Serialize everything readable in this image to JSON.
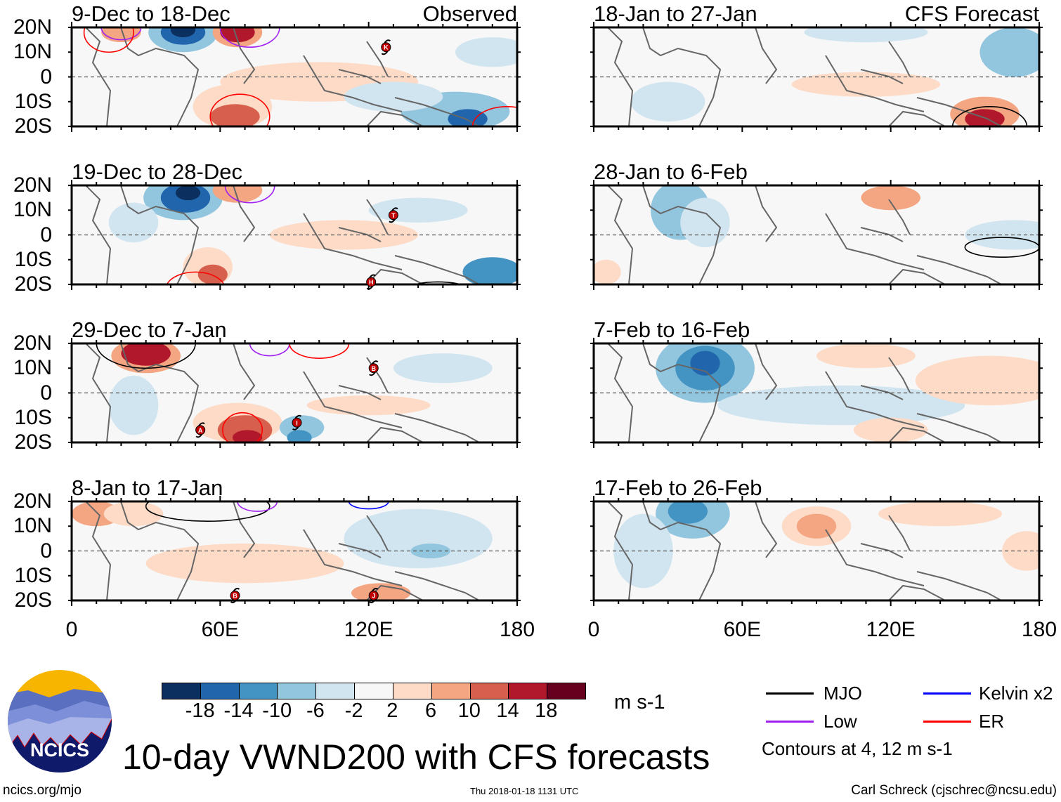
{
  "colors": {
    "scale": [
      "#0b2f5e",
      "#2166ac",
      "#4393c3",
      "#92c5de",
      "#d1e5f0",
      "#f7f7f7",
      "#fddbc7",
      "#f4a582",
      "#d6604d",
      "#b2182b",
      "#67001f"
    ],
    "mjo": "#000000",
    "kelvin": "#0000ff",
    "low": "#a020f0",
    "er": "#ff0000",
    "storm": "#c00000"
  },
  "left_column": {
    "label": "Observed",
    "panels": [
      {
        "title": "9-Dec to 18-Dec",
        "storms": [
          {
            "id": "K",
            "lon": 127,
            "lat": 12
          }
        ]
      },
      {
        "title": "19-Dec to 28-Dec",
        "storms": [
          {
            "id": "T",
            "lon": 130,
            "lat": 8
          },
          {
            "id": "H",
            "lon": 121,
            "lat": -19
          }
        ]
      },
      {
        "title": "29-Dec to 7-Jan",
        "storms": [
          {
            "id": "B",
            "lon": 122,
            "lat": 10
          },
          {
            "id": "A",
            "lon": 52,
            "lat": -15
          },
          {
            "id": "I",
            "lon": 91,
            "lat": -12
          }
        ]
      },
      {
        "title": "8-Jan to 17-Jan",
        "storms": [
          {
            "id": "B",
            "lon": 66,
            "lat": -18
          },
          {
            "id": "J",
            "lon": 122,
            "lat": -18
          }
        ]
      }
    ]
  },
  "right_column": {
    "label": "CFS Forecast",
    "panels": [
      {
        "title": "18-Jan to 27-Jan"
      },
      {
        "title": "28-Jan to 6-Feb"
      },
      {
        "title": "7-Feb to 16-Feb"
      },
      {
        "title": "17-Feb to 26-Feb"
      }
    ]
  },
  "y_axis": [
    "20N",
    "10N",
    "0",
    "10S",
    "20S"
  ],
  "x_axis": [
    "0",
    "60E",
    "120E",
    "180"
  ],
  "colorbar": {
    "labels": [
      "-18",
      "-14",
      "-10",
      "-6",
      "-2",
      "2",
      "6",
      "10",
      "14",
      "18"
    ],
    "units": "m s-1"
  },
  "legend": {
    "items": [
      {
        "label": "MJO"
      },
      {
        "label": "Kelvin x2"
      },
      {
        "label": "Low"
      },
      {
        "label": "ER"
      }
    ],
    "note": "Contours at 4, 12 m s-1"
  },
  "logo": {
    "text": "NCICS"
  },
  "title": "10-day VWND200 with CFS forecasts",
  "footer": {
    "url": "ncics.org/mjo",
    "timestamp": "Thu 2018-01-18 1131 UTC",
    "credit": "Carl Schreck (cjschrec@ncsu.edu)"
  }
}
